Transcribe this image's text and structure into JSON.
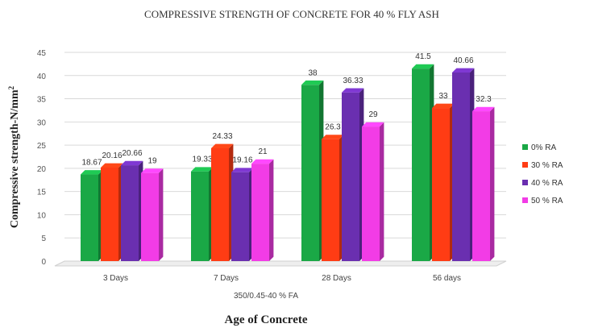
{
  "chart_data": {
    "type": "bar",
    "title": "COMPRESSIVE STRENGTH OF CONCRETE FOR 40 % FLY ASH",
    "xlabel": "Age of Concrete",
    "subtitle_x": "350/0.45-40 % FA",
    "ylabel": "Compressive strength-N/mm",
    "ylabel_sup": "2",
    "ylim": [
      0,
      45
    ],
    "yticks": [
      0,
      5,
      10,
      15,
      20,
      25,
      30,
      35,
      40,
      45
    ],
    "categories": [
      "3 Days",
      "7 Days",
      "28 Days",
      "56 days"
    ],
    "legend_position": "right",
    "grid": true,
    "series": [
      {
        "name": "0% RA",
        "color": "#1aa846",
        "values": [
          18.67,
          19.33,
          38,
          41.5
        ],
        "labels": [
          "18.67",
          "19.33",
          "38",
          "41.5"
        ]
      },
      {
        "name": "30 % RA",
        "color": "#ff3c14",
        "values": [
          20.16,
          24.33,
          26.3,
          33
        ],
        "labels": [
          "20.16",
          "24.33",
          "26.3",
          "33"
        ]
      },
      {
        "name": "40 % RA",
        "color": "#6a2fb0",
        "values": [
          20.66,
          19.16,
          36.33,
          40.66
        ],
        "labels": [
          "20.66",
          "19.16",
          "36.33",
          "40.66"
        ]
      },
      {
        "name": "50 % RA",
        "color": "#f23ce6",
        "values": [
          19,
          21,
          29,
          32.3
        ],
        "labels": [
          "19",
          "21",
          "29",
          "32.3"
        ]
      }
    ]
  }
}
